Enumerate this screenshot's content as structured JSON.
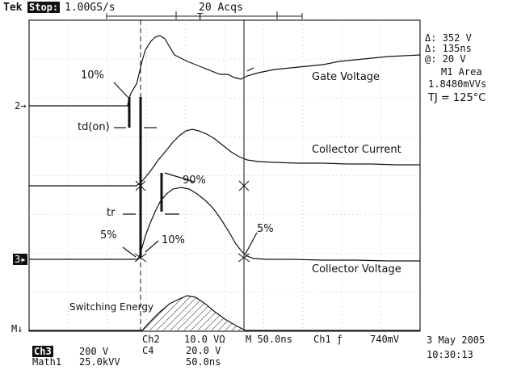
{
  "header": {
    "brand": "Tek",
    "state": "Stop:",
    "rate": "1.00GS/s",
    "acqs": "20 Acqs",
    "trigger_marker": "T"
  },
  "readout": {
    "delta_v": "Δ: 352 V",
    "delta_t": "Δ: 135ns",
    "at_v": "@: 20 V",
    "m1_area": "M1 Area",
    "area_val": "1.8480mVVs",
    "tj": "TJ = 125°C"
  },
  "labels": {
    "gate": "Gate Voltage",
    "collector_current": "Collector Current",
    "collector_voltage": "Collector Voltage",
    "switching_energy": "Switching Energy",
    "p10_top": "10%",
    "td_on": "td(on)",
    "p90": "90%",
    "tr": "tr",
    "p5_left": "5%",
    "p10_bottom": "10%",
    "p5_right": "5%"
  },
  "markers": {
    "ch2": "2",
    "ch3": "3",
    "math": "M"
  },
  "footer": {
    "ch2": "Ch2",
    "ch2_scale": "10.0 VΩ",
    "timebase": "M 50.0ns",
    "ch1": "Ch1",
    "trig_level": "740mV",
    "ch3_badge": "Ch3",
    "ch3_scale": "200 V",
    "ch4": "C4",
    "ch4_scale": "20.0 V",
    "math1": "Math1",
    "math_scale": "25.0kVV",
    "math_time": "50.0ns",
    "date": "3 May 2005",
    "time": "10:30:13"
  }
}
